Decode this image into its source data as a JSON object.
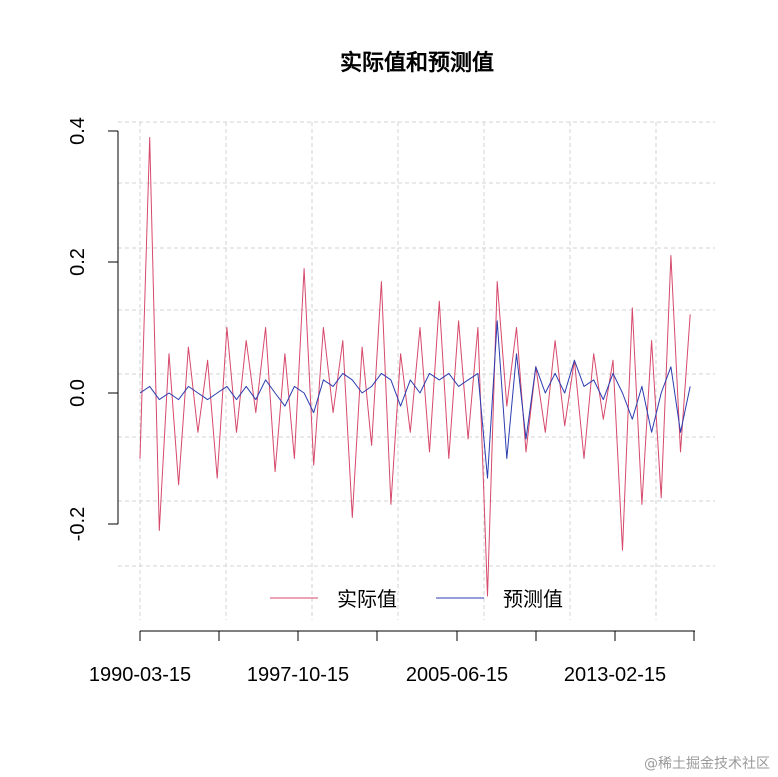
{
  "chart_data": {
    "type": "line",
    "title": "实际值和预测值",
    "xlabel": "",
    "ylabel": "",
    "x_tick_labels": [
      "1990-03-15",
      "1997-10-15",
      "2005-06-15",
      "2013-02-15"
    ],
    "y_tick_labels": [
      "-0.2",
      "0.0",
      "0.2",
      "0.4"
    ],
    "y_ticks": [
      -0.2,
      0.0,
      0.2,
      0.4
    ],
    "xlim": [
      "1990-03-15",
      "2018-12-15"
    ],
    "ylim": [
      -0.36,
      0.4
    ],
    "grid": true,
    "legend_position": "bottom",
    "series": [
      {
        "name": "实际值",
        "color": "#d6496b",
        "x": [
          "1990-03-15",
          "1990-09-15",
          "1991-03-15",
          "1991-09-15",
          "1992-03-15",
          "1992-09-15",
          "1993-03-15",
          "1993-09-15",
          "1994-03-15",
          "1994-09-15",
          "1995-03-15",
          "1995-09-15",
          "1996-03-15",
          "1996-09-15",
          "1997-03-15",
          "1997-09-15",
          "1998-03-15",
          "1998-09-15",
          "1999-03-15",
          "1999-09-15",
          "2000-03-15",
          "2000-09-15",
          "2001-03-15",
          "2001-09-15",
          "2002-03-15",
          "2002-09-15",
          "2003-03-15",
          "2003-09-15",
          "2004-03-15",
          "2004-09-15",
          "2005-03-15",
          "2005-09-15",
          "2006-03-15",
          "2006-09-15",
          "2007-03-15",
          "2007-09-15",
          "2008-03-15",
          "2008-09-15",
          "2009-03-15",
          "2009-09-15",
          "2010-03-15",
          "2010-09-15",
          "2011-03-15",
          "2011-09-15",
          "2012-03-15",
          "2012-09-15",
          "2013-03-15",
          "2013-09-15",
          "2014-03-15",
          "2014-09-15",
          "2015-03-15",
          "2015-09-15",
          "2016-03-15",
          "2016-09-15",
          "2017-03-15",
          "2017-09-15",
          "2018-03-15",
          "2018-09-15"
        ],
        "values": [
          -0.1,
          0.39,
          -0.21,
          0.06,
          -0.14,
          0.07,
          -0.06,
          0.05,
          -0.13,
          0.1,
          -0.06,
          0.08,
          -0.03,
          0.1,
          -0.12,
          0.06,
          -0.1,
          0.19,
          -0.11,
          0.1,
          -0.03,
          0.08,
          -0.19,
          0.07,
          -0.08,
          0.17,
          -0.17,
          0.06,
          -0.06,
          0.1,
          -0.09,
          0.14,
          -0.1,
          0.11,
          -0.07,
          0.1,
          -0.31,
          0.17,
          -0.02,
          0.1,
          -0.09,
          0.04,
          -0.06,
          0.08,
          -0.05,
          0.05,
          -0.1,
          0.06,
          -0.04,
          0.05,
          -0.24,
          0.13,
          -0.17,
          0.08,
          -0.16,
          0.21,
          -0.09,
          0.12
        ]
      },
      {
        "name": "预测值",
        "color": "#2b3db0",
        "x": [
          "1990-03-15",
          "1990-09-15",
          "1991-03-15",
          "1991-09-15",
          "1992-03-15",
          "1992-09-15",
          "1993-03-15",
          "1993-09-15",
          "1994-03-15",
          "1994-09-15",
          "1995-03-15",
          "1995-09-15",
          "1996-03-15",
          "1996-09-15",
          "1997-03-15",
          "1997-09-15",
          "1998-03-15",
          "1998-09-15",
          "1999-03-15",
          "1999-09-15",
          "2000-03-15",
          "2000-09-15",
          "2001-03-15",
          "2001-09-15",
          "2002-03-15",
          "2002-09-15",
          "2003-03-15",
          "2003-09-15",
          "2004-03-15",
          "2004-09-15",
          "2005-03-15",
          "2005-09-15",
          "2006-03-15",
          "2006-09-15",
          "2007-03-15",
          "2007-09-15",
          "2008-03-15",
          "2008-09-15",
          "2009-03-15",
          "2009-09-15",
          "2010-03-15",
          "2010-09-15",
          "2011-03-15",
          "2011-09-15",
          "2012-03-15",
          "2012-09-15",
          "2013-03-15",
          "2013-09-15",
          "2014-03-15",
          "2014-09-15",
          "2015-03-15",
          "2015-09-15",
          "2016-03-15",
          "2016-09-15",
          "2017-03-15",
          "2017-09-15",
          "2018-03-15",
          "2018-09-15"
        ],
        "values": [
          0.0,
          0.01,
          -0.01,
          0.0,
          -0.01,
          0.01,
          0.0,
          -0.01,
          0.0,
          0.01,
          -0.01,
          0.01,
          -0.01,
          0.02,
          0.0,
          -0.02,
          0.01,
          0.0,
          -0.03,
          0.02,
          0.01,
          0.03,
          0.02,
          0.0,
          0.01,
          0.03,
          0.02,
          -0.02,
          0.02,
          0.0,
          0.03,
          0.02,
          0.03,
          0.01,
          0.02,
          0.03,
          -0.13,
          0.11,
          -0.1,
          0.06,
          -0.07,
          0.04,
          0.0,
          0.03,
          0.0,
          0.05,
          0.01,
          0.02,
          -0.01,
          0.03,
          0.0,
          -0.04,
          0.01,
          -0.06,
          0.0,
          0.04,
          -0.06,
          0.01
        ]
      }
    ]
  },
  "watermark": "@稀土掘金技术社区"
}
